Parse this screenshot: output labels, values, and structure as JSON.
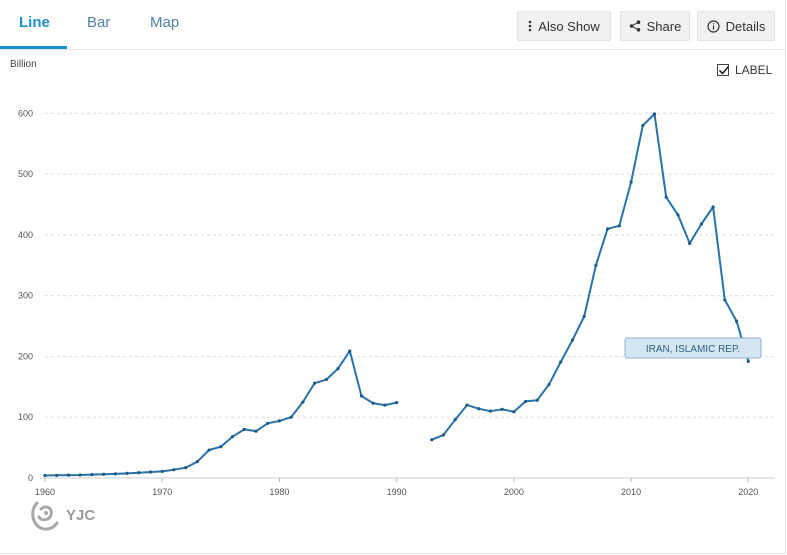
{
  "tabs": [
    {
      "label": "Line",
      "active": true
    },
    {
      "label": "Bar",
      "active": false
    },
    {
      "label": "Map",
      "active": false
    }
  ],
  "toolbar": {
    "also_show": {
      "label": "Also Show",
      "icon": "vertical-dots-icon"
    },
    "share": {
      "label": "Share",
      "icon": "share-icon"
    },
    "details": {
      "label": "Details",
      "icon": "info-icon"
    }
  },
  "label_toggle": {
    "label": "LABEL",
    "checked": true
  },
  "logo_text": "YJC",
  "colors": {
    "accent": "#1b8fd0",
    "line": "#2a72a8",
    "label_bg": "#d5e6f3"
  },
  "chart_data": {
    "type": "line",
    "ylabel": "Billion",
    "xlim": [
      1960,
      2021
    ],
    "ylim": [
      0,
      650
    ],
    "x_ticks": [
      1960,
      1970,
      1980,
      1990,
      2000,
      2010,
      2020
    ],
    "y_ticks": [
      0,
      100,
      200,
      300,
      400,
      500,
      600
    ],
    "grid": "horizontal-dashed",
    "series": [
      {
        "name": "IRAN, ISLAMIC REP.",
        "points": [
          [
            1960,
            4.1
          ],
          [
            1961,
            4.4
          ],
          [
            1962,
            4.7
          ],
          [
            1963,
            5.0
          ],
          [
            1964,
            5.6
          ],
          [
            1965,
            6.2
          ],
          [
            1966,
            6.8
          ],
          [
            1967,
            7.6
          ],
          [
            1968,
            8.7
          ],
          [
            1969,
            9.9
          ],
          [
            1970,
            10.9
          ],
          [
            1971,
            13.7
          ],
          [
            1972,
            17.0
          ],
          [
            1973,
            27.0
          ],
          [
            1974,
            46.0
          ],
          [
            1975,
            51.5
          ],
          [
            1976,
            68.0
          ],
          [
            1977,
            80.0
          ],
          [
            1978,
            77.0
          ],
          [
            1979,
            90.0
          ],
          [
            1980,
            94.0
          ],
          [
            1981,
            100.0
          ],
          [
            1982,
            125.0
          ],
          [
            1983,
            156.0
          ],
          [
            1984,
            162.0
          ],
          [
            1985,
            180.0
          ],
          [
            1986,
            209.0
          ],
          [
            1987,
            135.0
          ],
          [
            1988,
            123.0
          ],
          [
            1989,
            120.0
          ],
          [
            1990,
            124.0
          ],
          [
            1991,
            null
          ],
          [
            1992,
            null
          ],
          [
            1993,
            63.0
          ],
          [
            1994,
            71.0
          ],
          [
            1995,
            96.0
          ],
          [
            1996,
            120.0
          ],
          [
            1997,
            114.0
          ],
          [
            1998,
            110.0
          ],
          [
            1999,
            113.0
          ],
          [
            2000,
            109.0
          ],
          [
            2001,
            126.0
          ],
          [
            2002,
            128.0
          ],
          [
            2003,
            154.0
          ],
          [
            2004,
            191.0
          ],
          [
            2005,
            227.0
          ],
          [
            2006,
            266.0
          ],
          [
            2007,
            350.0
          ],
          [
            2008,
            410.0
          ],
          [
            2009,
            415.0
          ],
          [
            2010,
            487.0
          ],
          [
            2011,
            580.0
          ],
          [
            2012,
            599.0
          ],
          [
            2013,
            462.0
          ],
          [
            2014,
            433.0
          ],
          [
            2015,
            386.0
          ],
          [
            2016,
            418.0
          ],
          [
            2017,
            446.0
          ],
          [
            2018,
            293.0
          ],
          [
            2019,
            258.0
          ],
          [
            2020,
            192.0
          ]
        ]
      }
    ]
  }
}
